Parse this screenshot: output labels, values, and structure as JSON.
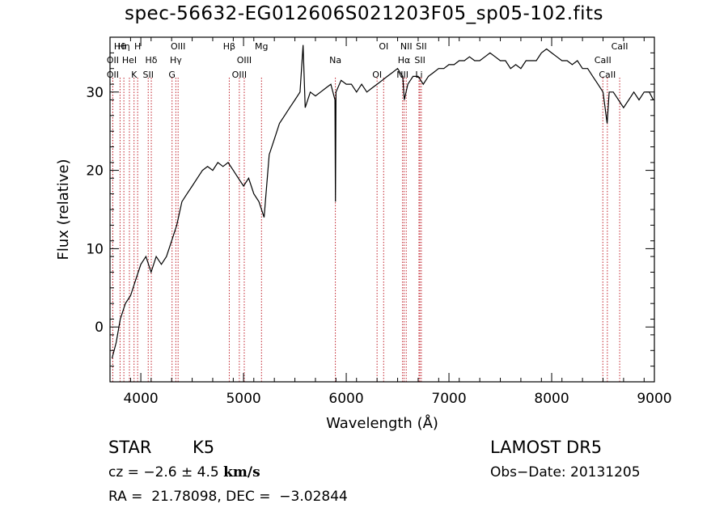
{
  "chart_data": {
    "type": "line",
    "title": "spec-56632-EG012606S021203F05_sp05-102.fits",
    "xlabel": "Wavelength (Å)",
    "ylabel": "Flux (relative)",
    "xlim": [
      3700,
      9000
    ],
    "ylim": [
      -7,
      37
    ],
    "xticks": [
      4000,
      5000,
      6000,
      7000,
      8000,
      9000
    ],
    "yticks": [
      0,
      10,
      20,
      30
    ],
    "series": [
      {
        "x": [
          3720,
          3760,
          3800,
          3850,
          3900,
          3950,
          4000,
          4050,
          4100,
          4150,
          4200,
          4250,
          4300,
          4350,
          4400,
          4450,
          4500,
          4550,
          4600,
          4650,
          4700,
          4750,
          4800,
          4850,
          4900,
          4950,
          5000,
          5050,
          5100,
          5150,
          5200,
          5250,
          5300,
          5350,
          5400,
          5450,
          5500,
          5550,
          5580,
          5600,
          5650,
          5700,
          5750,
          5800,
          5850,
          5890,
          5895,
          5900,
          5950,
          6000,
          6050,
          6100,
          6150,
          6200,
          6250,
          6300,
          6350,
          6400,
          6450,
          6500,
          6550,
          6565,
          6600,
          6650,
          6700,
          6750,
          6800,
          6850,
          6900,
          6950,
          7000,
          7050,
          7100,
          7150,
          7200,
          7250,
          7300,
          7350,
          7400,
          7450,
          7500,
          7550,
          7600,
          7650,
          7700,
          7750,
          7800,
          7850,
          7900,
          7950,
          8000,
          8050,
          8100,
          8150,
          8200,
          8250,
          8300,
          8350,
          8400,
          8450,
          8500,
          8540,
          8560,
          8600,
          8650,
          8700,
          8750,
          8800,
          8850,
          8900,
          8950,
          8990
        ],
        "y": [
          -4,
          -2,
          1,
          3,
          4,
          6,
          8,
          9,
          7,
          9,
          8,
          9,
          11,
          13,
          16,
          17,
          18,
          19,
          20,
          20.5,
          20,
          21,
          20.5,
          21,
          20,
          19,
          18,
          19,
          17,
          16,
          14,
          22,
          24,
          26,
          27,
          28,
          29,
          30,
          36,
          28,
          30,
          29.5,
          30,
          30.5,
          31,
          29,
          16,
          30,
          31.5,
          31,
          31,
          30,
          31,
          30,
          30.5,
          31,
          31.5,
          32,
          32.5,
          33,
          32,
          29,
          31,
          32,
          32,
          31,
          32,
          32.5,
          33,
          33,
          33.5,
          33.5,
          34,
          34,
          34.5,
          34,
          34,
          34.5,
          35,
          34.5,
          34,
          34,
          33,
          33.5,
          33,
          34,
          34,
          34,
          35,
          35.5,
          35,
          34.5,
          34,
          34,
          33.5,
          34,
          33,
          33,
          32,
          31,
          30,
          26,
          30,
          30,
          29,
          28,
          29,
          30,
          29,
          30,
          30,
          29
        ]
      }
    ],
    "lines": [
      {
        "label": "Hθ",
        "x": 3798
      },
      {
        "label": "OII",
        "x": 3727
      },
      {
        "label": "OII",
        "x": 3727
      },
      {
        "label": "Hη",
        "x": 3835
      },
      {
        "label": "HeI",
        "x": 3889
      },
      {
        "label": "K",
        "x": 3934
      },
      {
        "label": "H",
        "x": 3969
      },
      {
        "label": "Hδ",
        "x": 4102
      },
      {
        "label": "SII",
        "x": 4072
      },
      {
        "label": "OIII",
        "x": 4363
      },
      {
        "label": "Hγ",
        "x": 4341
      },
      {
        "label": "G",
        "x": 4304
      },
      {
        "label": "Hβ",
        "x": 4861
      },
      {
        "label": "OIII",
        "x": 5007
      },
      {
        "label": "OIII",
        "x": 4959
      },
      {
        "label": "Mg",
        "x": 5175
      },
      {
        "label": "Na",
        "x": 5894
      },
      {
        "label": "OI",
        "x": 6300
      },
      {
        "label": "OI",
        "x": 6364
      },
      {
        "label": "Hα",
        "x": 6563
      },
      {
        "label": "NII",
        "x": 6548
      },
      {
        "label": "NII",
        "x": 6584
      },
      {
        "label": "SII",
        "x": 6717
      },
      {
        "label": "Li",
        "x": 6708
      },
      {
        "label": "SII",
        "x": 6731
      },
      {
        "label": "CaII",
        "x": 8498
      },
      {
        "label": "CaII",
        "x": 8542
      },
      {
        "label": "CaII",
        "x": 8662
      }
    ]
  },
  "info": {
    "object_class": "STAR",
    "subclass": "K5",
    "survey": "LAMOST DR5",
    "cz_label": "cz = ",
    "cz_value": "−2.6 ± 4.5",
    "cz_unit": "km/s",
    "obs_date": "Obs−Date: 20131205",
    "coords": "RA =  21.78098, DEC =  −3.02844"
  }
}
